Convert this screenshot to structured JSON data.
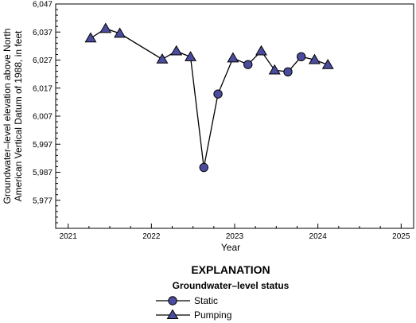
{
  "chart_data": {
    "type": "scatter",
    "xlabel": "Year",
    "ylabel_lines": [
      "Groundwater–level elevation above North",
      "American Vertical Datum of 1988, in feet"
    ],
    "xlim": [
      2020.85,
      2025.15
    ],
    "ylim": [
      5967,
      6047
    ],
    "x_ticks": [
      "2021",
      "2022",
      "2023",
      "2024",
      "2025"
    ],
    "y_ticks": [
      "5,977",
      "5,987",
      "5,997",
      "6,007",
      "6,017",
      "6,027",
      "6,037",
      "6,047"
    ],
    "line_color": "#000000",
    "marker_color": "#4b4c9e",
    "points": [
      {
        "x": 2021.27,
        "y": 6034.8,
        "status": "pumping"
      },
      {
        "x": 2021.45,
        "y": 6038.2,
        "status": "pumping"
      },
      {
        "x": 2021.62,
        "y": 6036.5,
        "status": "pumping"
      },
      {
        "x": 2022.13,
        "y": 6027.3,
        "status": "pumping"
      },
      {
        "x": 2022.3,
        "y": 6030.2,
        "status": "pumping"
      },
      {
        "x": 2022.47,
        "y": 6028.1,
        "status": "pumping"
      },
      {
        "x": 2022.63,
        "y": 5988.7,
        "status": "static"
      },
      {
        "x": 2022.8,
        "y": 6014.9,
        "status": "static"
      },
      {
        "x": 2022.98,
        "y": 6027.7,
        "status": "pumping"
      },
      {
        "x": 2023.16,
        "y": 6025.4,
        "status": "static"
      },
      {
        "x": 2023.32,
        "y": 6030.2,
        "status": "pumping"
      },
      {
        "x": 2023.48,
        "y": 6023.4,
        "status": "pumping"
      },
      {
        "x": 2023.64,
        "y": 6022.8,
        "status": "static"
      },
      {
        "x": 2023.8,
        "y": 6028.2,
        "status": "static"
      },
      {
        "x": 2023.96,
        "y": 6027.1,
        "status": "pumping"
      },
      {
        "x": 2024.12,
        "y": 6025.3,
        "status": "pumping"
      }
    ],
    "legend": {
      "title": "EXPLANATION",
      "subtitle": "Groundwater–level status",
      "entries": [
        {
          "label": "Static",
          "marker": "circle"
        },
        {
          "label": "Pumping",
          "marker": "triangle"
        }
      ]
    }
  }
}
